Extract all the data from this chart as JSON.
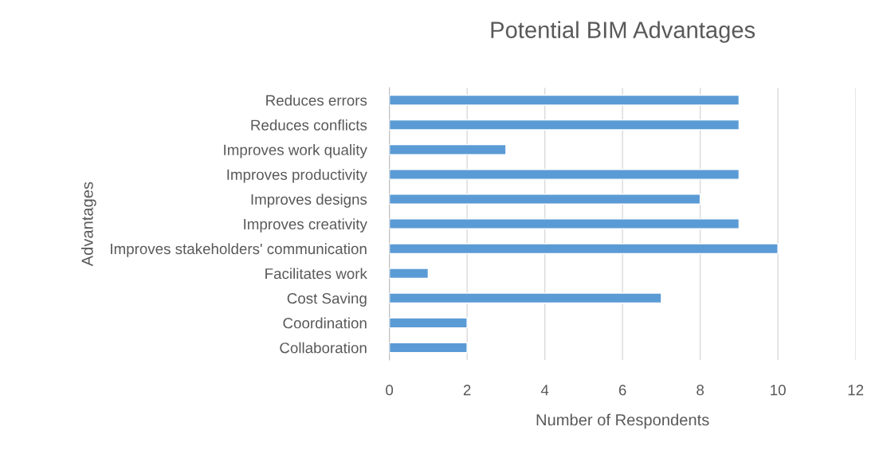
{
  "chart_data": {
    "type": "bar",
    "orientation": "horizontal",
    "title": "Potential BIM Advantages",
    "xlabel": "Number of Respondents",
    "ylabel": "Advantages",
    "categories": [
      "Reduces errors",
      "Reduces conflicts",
      "Improves work quality",
      "Improves productivity",
      "Improves designs",
      "Improves creativity",
      "Improves stakeholders' communication",
      "Facilitates work",
      "Cost Saving",
      "Coordination",
      "Collaboration"
    ],
    "values": [
      9,
      9,
      3,
      9,
      8,
      9,
      10,
      1,
      7,
      2,
      2
    ],
    "color": "#5b9bd5",
    "xlim": [
      0,
      12
    ],
    "xticks": [
      0,
      2,
      4,
      6,
      8,
      10,
      12
    ],
    "grid": "x",
    "legend": false
  }
}
